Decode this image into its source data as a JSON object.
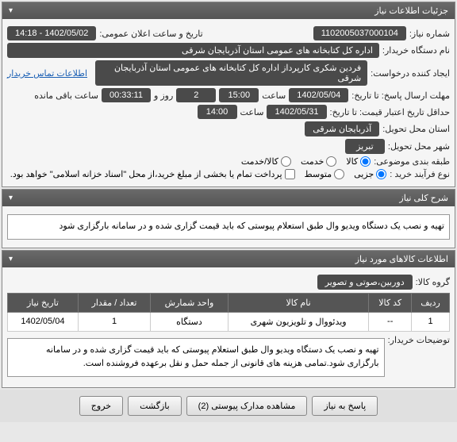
{
  "panel1": {
    "title": "جزئیات اطلاعات نیاز",
    "need_no_label": "شماره نیاز:",
    "need_no": "1102005037000104",
    "announce_label": "تاریخ و ساعت اعلان عمومی:",
    "announce_val": "1402/05/02 - 14:18",
    "buyer_org_label": "نام دستگاه خریدار:",
    "buyer_org": "اداره کل کتابخانه های عمومی استان آذربایجان شرقی",
    "creator_label": "ایجاد کننده درخواست:",
    "creator": "فردین شکری کارپرداز اداره کل کتابخانه های عمومی استان آذربایجان شرقی",
    "contact_link": "اطلاعات تماس خریدار",
    "deadline_label": "مهلت ارسال پاسخ: تا تاریخ:",
    "deadline_date": "1402/05/04",
    "deadline_time_label": "ساعت",
    "deadline_time": "15:00",
    "days_label": "روز و",
    "days": "2",
    "remain_label": "ساعت باقی مانده",
    "remain": "00:33:11",
    "min_valid_label": "حداقل تاریخ اعتبار قیمت: تا تاریخ:",
    "min_valid_date": "1402/05/31",
    "min_valid_time": "14:00",
    "province_label": "استان محل تحویل:",
    "province": "آذربایجان شرقی",
    "city_label": "شهر محل تحویل:",
    "city": "تبریز",
    "category_label": "طبقه بندی موضوعی:",
    "cat_goods": "کالا",
    "cat_service": "خدمت",
    "cat_both": "کالا/خدمت",
    "purchase_type_label": "نوع فرآیند خرید :",
    "pt_partial": "جزیی",
    "pt_medium": "متوسط",
    "pt_note": "پرداخت تمام یا بخشی از مبلغ خرید،از محل \"اسناد خزانه اسلامی\" خواهد بود."
  },
  "panel2": {
    "title": "شرح کلی نیاز",
    "desc": "تهیه و نصب یک دستگاه ویدیو وال طبق استعلام پیوستی که باید قیمت گزاری شده و در سامانه بارگزاری شود"
  },
  "panel3": {
    "title": "اطلاعات کالاهای مورد نیاز",
    "group_label": "گروه کالا:",
    "group_val": "دوربین،صوتی و تصویر",
    "cols": [
      "ردیف",
      "کد کالا",
      "نام کالا",
      "واحد شمارش",
      "تعداد / مقدار",
      "تاریخ نیاز"
    ],
    "row": [
      "1",
      "--",
      "ویدئووال و تلویزیون شهری",
      "دستگاه",
      "1",
      "1402/05/04"
    ],
    "buyer_notes_label": "توضیحات خریدار:",
    "buyer_notes": "تهیه و نصب یک دستگاه ویدیو وال طبق استعلام پیوستی که باید قیمت گزاری شده و در سامانه بارگزاری شود.تمامی هزینه های قانونی از جمله حمل و نقل برعهده فروشنده است."
  },
  "footer": {
    "respond": "پاسخ به نیاز",
    "attach": "مشاهده مدارک پیوستی (2)",
    "back": "بازگشت",
    "exit": "خروج"
  }
}
